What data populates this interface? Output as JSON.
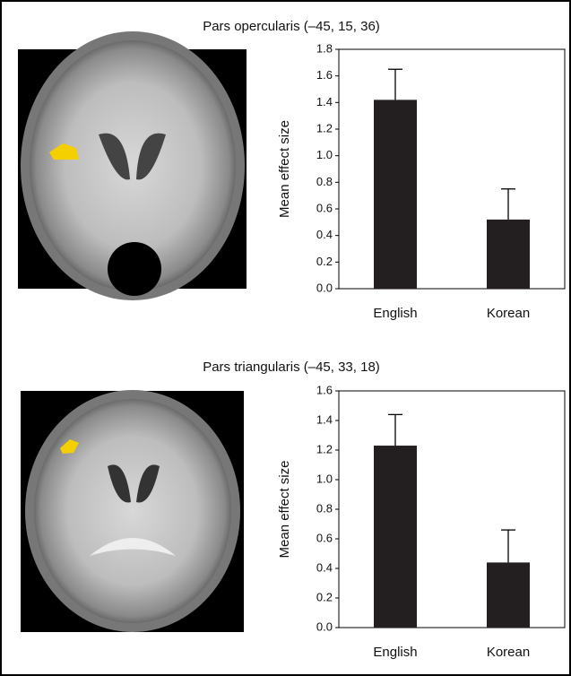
{
  "chart_data": [
    {
      "type": "bar",
      "title": "Pars opercularis (–45, 15, 36)",
      "y_label": "Mean effect size",
      "categories": [
        "English",
        "Korean"
      ],
      "values": [
        1.42,
        0.52
      ],
      "errors": [
        0.23,
        0.23
      ],
      "color": "#231f20",
      "ylim": [
        0,
        1.8
      ],
      "yticks": [
        {
          "value": 0,
          "label": "0.0"
        },
        0.2,
        0.4,
        0.6,
        0.8,
        {
          "value": 1,
          "label": "1.0"
        },
        1.2,
        1.4,
        1.6,
        1.8
      ]
    },
    {
      "type": "bar",
      "title": "Pars triangularis (–45, 33, 18)",
      "y_label": "Mean effect size",
      "categories": [
        "English",
        "Korean"
      ],
      "values": [
        1.23,
        0.44
      ],
      "errors": [
        0.21,
        0.22
      ],
      "color": "#231f20",
      "ylim": [
        0,
        1.6
      ],
      "yticks": [
        {
          "value": 0,
          "label": "0.0"
        },
        0.2,
        0.4,
        0.6,
        0.8,
        {
          "value": 1,
          "label": "1.0"
        },
        1.2,
        1.4,
        1.6
      ]
    }
  ]
}
